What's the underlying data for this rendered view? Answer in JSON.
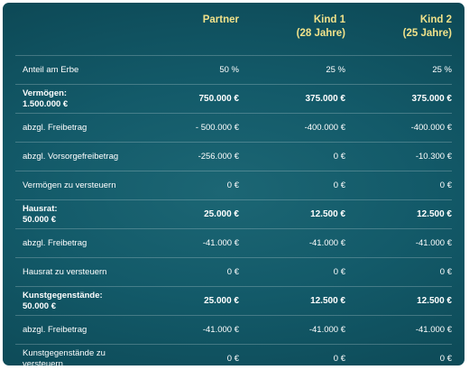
{
  "columns": [
    {
      "line1": "Partner",
      "line2": ""
    },
    {
      "line1": "Kind 1",
      "line2": "(28 Jahre)"
    },
    {
      "line1": "Kind 2",
      "line2": "(25 Jahre)"
    }
  ],
  "rows": [
    {
      "label": "Anteil am Erbe",
      "label2": "",
      "bold": false,
      "values": [
        "50 %",
        "25 %",
        "25 %"
      ]
    },
    {
      "label": "Vermögen:",
      "label2": "1.500.000 €",
      "bold": true,
      "values": [
        "750.000 €",
        "375.000 €",
        "375.000 €"
      ]
    },
    {
      "label": "abzgl. Freibetrag",
      "label2": "",
      "bold": false,
      "values": [
        "- 500.000 €",
        "-400.000 €",
        "-400.000 €"
      ]
    },
    {
      "label": "abzgl. Vorsorgefreibetrag",
      "label2": "",
      "bold": false,
      "values": [
        "-256.000 €",
        "0 €",
        "-10.300 €"
      ]
    },
    {
      "label": "Vermögen zu versteuern",
      "label2": "",
      "bold": false,
      "values": [
        "0 €",
        "0 €",
        "0 €"
      ]
    },
    {
      "label": "Hausrat:",
      "label2": "50.000 €",
      "bold": true,
      "values": [
        "25.000 €",
        "12.500 €",
        "12.500 €"
      ]
    },
    {
      "label": "abzgl. Freibetrag",
      "label2": "",
      "bold": false,
      "values": [
        "-41.000 €",
        "-41.000 €",
        "-41.000 €"
      ]
    },
    {
      "label": "Hausrat zu versteuern",
      "label2": "",
      "bold": false,
      "values": [
        "0 €",
        "0 €",
        "0 €"
      ]
    },
    {
      "label": "Kunstgegenstände:",
      "label2": "50.000 €",
      "bold": true,
      "values": [
        "25.000 €",
        "12.500 €",
        "12.500 €"
      ]
    },
    {
      "label": "abzgl. Freibetrag",
      "label2": "",
      "bold": false,
      "values": [
        "-41.000 €",
        "-41.000 €",
        "-41.000 €"
      ]
    },
    {
      "label": "Kunstgegenstände zu",
      "label2": "versteuern",
      "bold": false,
      "values": [
        "0 €",
        "0 €",
        "0 €"
      ]
    }
  ]
}
